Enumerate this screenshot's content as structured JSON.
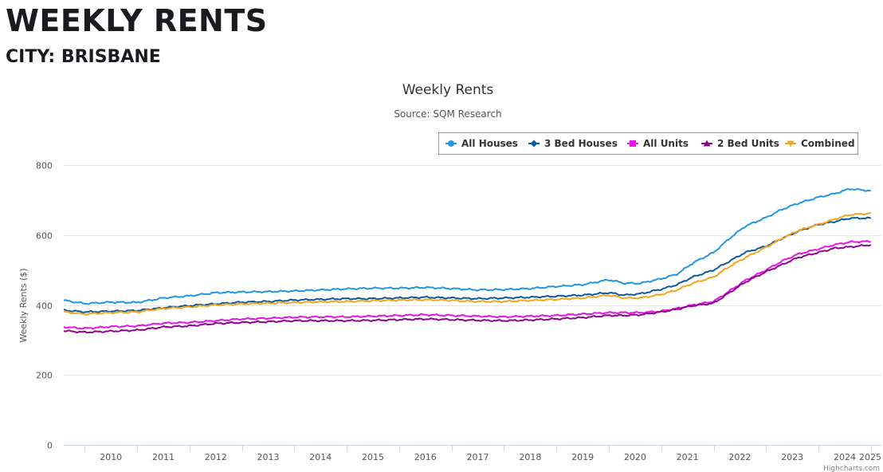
{
  "header": {
    "title": "WEEKLY RENTS",
    "subtitle": "CITY: BRISBANE"
  },
  "credits": "Highcharts.com",
  "chart_data": {
    "type": "line",
    "title": "Weekly Rents",
    "subtitle": "Source: SQM Research",
    "ylabel": "Weekly Rents ($)",
    "xlabel": "",
    "ylim": [
      0,
      800
    ],
    "yticks": [
      0,
      200,
      400,
      600,
      800
    ],
    "xlim": [
      2009.6,
      2025.2
    ],
    "xticks": [
      "2010",
      "2011",
      "2012",
      "2013",
      "2014",
      "2015",
      "2016",
      "2017",
      "2018",
      "2019",
      "2020",
      "2021",
      "2022",
      "2023",
      "2024",
      "2025"
    ],
    "grid": true,
    "legend_position": "top-right",
    "x": [
      2009.6,
      2010.0,
      2010.5,
      2011.0,
      2011.5,
      2012.0,
      2012.5,
      2013.0,
      2013.5,
      2014.0,
      2014.5,
      2015.0,
      2015.5,
      2016.0,
      2016.5,
      2017.0,
      2017.5,
      2018.0,
      2018.5,
      2019.0,
      2019.5,
      2020.0,
      2020.3,
      2020.6,
      2021.0,
      2021.3,
      2021.6,
      2022.0,
      2022.3,
      2022.6,
      2023.0,
      2023.3,
      2023.6,
      2024.0,
      2024.3,
      2024.6,
      2025.0
    ],
    "series": [
      {
        "name": "All Houses",
        "color": "#2196e3",
        "marker": "circle",
        "values": [
          413,
          404,
          408,
          407,
          420,
          426,
          435,
          437,
          438,
          440,
          443,
          446,
          448,
          448,
          450,
          447,
          443,
          444,
          447,
          453,
          458,
          472,
          462,
          462,
          475,
          488,
          520,
          550,
          590,
          625,
          650,
          673,
          690,
          708,
          718,
          732,
          726
        ]
      },
      {
        "name": "3 Bed Houses",
        "color": "#0b5aa2",
        "marker": "diamond",
        "values": [
          385,
          380,
          382,
          384,
          392,
          398,
          403,
          408,
          410,
          414,
          416,
          418,
          418,
          420,
          422,
          420,
          418,
          420,
          422,
          425,
          428,
          435,
          428,
          432,
          445,
          458,
          480,
          500,
          525,
          550,
          568,
          590,
          610,
          630,
          638,
          648,
          648
        ]
      },
      {
        "name": "All Units",
        "color": "#e614e6",
        "marker": "square",
        "values": [
          337,
          333,
          338,
          340,
          348,
          350,
          355,
          360,
          362,
          365,
          366,
          366,
          368,
          370,
          372,
          370,
          368,
          366,
          368,
          370,
          374,
          378,
          378,
          378,
          382,
          390,
          400,
          410,
          440,
          470,
          500,
          525,
          545,
          560,
          572,
          580,
          582
        ]
      },
      {
        "name": "2 Bed Units",
        "color": "#8b068b",
        "marker": "triangle",
        "values": [
          326,
          322,
          325,
          328,
          337,
          340,
          347,
          350,
          352,
          355,
          355,
          355,
          356,
          358,
          360,
          358,
          356,
          355,
          357,
          360,
          364,
          370,
          370,
          372,
          380,
          388,
          398,
          405,
          435,
          465,
          495,
          515,
          535,
          550,
          562,
          566,
          572
        ]
      },
      {
        "name": "Combined",
        "color": "#f5a51b",
        "marker": "triangle-down",
        "values": [
          380,
          374,
          378,
          380,
          390,
          394,
          400,
          403,
          405,
          407,
          409,
          410,
          412,
          414,
          415,
          413,
          410,
          410,
          413,
          416,
          420,
          428,
          420,
          420,
          430,
          443,
          462,
          480,
          510,
          535,
          565,
          590,
          612,
          630,
          645,
          658,
          662
        ]
      }
    ]
  }
}
